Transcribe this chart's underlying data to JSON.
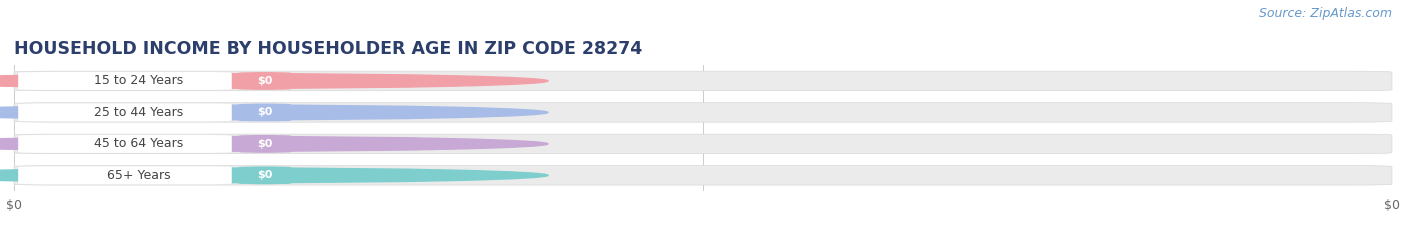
{
  "title": "HOUSEHOLD INCOME BY HOUSEHOLDER AGE IN ZIP CODE 28274",
  "source_text": "Source: ZipAtlas.com",
  "categories": [
    "15 to 24 Years",
    "25 to 44 Years",
    "45 to 64 Years",
    "65+ Years"
  ],
  "values": [
    0,
    0,
    0,
    0
  ],
  "bar_colors": [
    "#f2a0a8",
    "#a8bce8",
    "#c8a8d4",
    "#7ecece"
  ],
  "bar_bg_color": "#ebebeb",
  "background_color": "#ffffff",
  "title_fontsize": 12.5,
  "source_fontsize": 9,
  "figsize": [
    14.06,
    2.33
  ],
  "dpi": 100
}
